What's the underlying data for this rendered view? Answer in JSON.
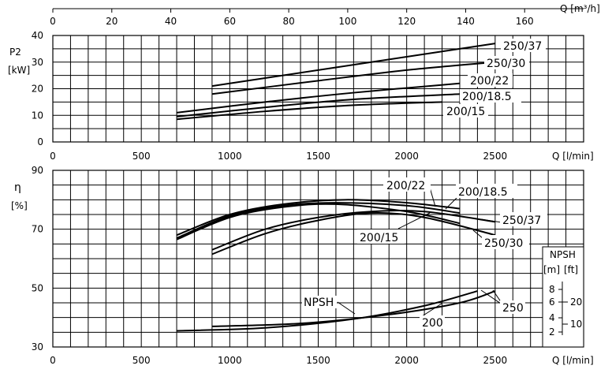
{
  "chart_data": [
    {
      "type": "line",
      "title": "",
      "ylabel": "P2",
      "yunit": "[kW]",
      "xlabel": "Q [l/min]",
      "x2label": "Q [m³/h]",
      "x2ticks": [
        0,
        20,
        40,
        60,
        80,
        100,
        120,
        140,
        160
      ],
      "xticks": [
        0,
        500,
        1000,
        1500,
        2000,
        2500
      ],
      "yticks": [
        0,
        10,
        20,
        30,
        40
      ],
      "ylim": [
        0,
        40
      ],
      "xlim": [
        0,
        3000
      ],
      "grid": true,
      "series": [
        {
          "name": "250/37",
          "x": [
            900,
            1500,
            2000,
            2500
          ],
          "y": [
            21,
            27,
            32,
            37
          ]
        },
        {
          "name": "250/30",
          "x": [
            900,
            1500,
            2000,
            2500
          ],
          "y": [
            18,
            23,
            27,
            30
          ]
        },
        {
          "name": "200/22",
          "x": [
            700,
            1200,
            1700,
            2300
          ],
          "y": [
            11,
            15,
            18.5,
            22
          ]
        },
        {
          "name": "200/18.5",
          "x": [
            700,
            1200,
            1700,
            2300
          ],
          "y": [
            9.5,
            13,
            16,
            18
          ]
        },
        {
          "name": "200/15",
          "x": [
            700,
            1200,
            1700,
            2200
          ],
          "y": [
            8.5,
            11.5,
            13.8,
            15
          ]
        }
      ]
    },
    {
      "type": "line",
      "title": "",
      "ylabel": "η",
      "yunit": "[%]",
      "xlabel": "Q [l/min]",
      "xticks": [
        0,
        500,
        1000,
        1500,
        2000,
        2500
      ],
      "yticks": [
        30,
        50,
        70,
        90
      ],
      "ylim": [
        30,
        90
      ],
      "xlim": [
        0,
        3000
      ],
      "grid": true,
      "series": [
        {
          "name": "200/22",
          "x": [
            700,
            1000,
            1300,
            1650,
            2000,
            2300
          ],
          "y": [
            68,
            75,
            78.5,
            80,
            79,
            77
          ]
        },
        {
          "name": "200/18.5",
          "x": [
            700,
            1000,
            1300,
            1600,
            2000,
            2300
          ],
          "y": [
            67,
            74.5,
            78,
            79,
            78,
            75.5
          ]
        },
        {
          "name": "200/15",
          "x": [
            700,
            1000,
            1300,
            1600,
            2000,
            2300
          ],
          "y": [
            66.5,
            74,
            77.5,
            78.5,
            76,
            72
          ]
        },
        {
          "name": "250/37",
          "x": [
            900,
            1200,
            1500,
            1800,
            2100,
            2500
          ],
          "y": [
            63,
            70,
            74,
            76,
            76,
            72.5
          ]
        },
        {
          "name": "250/30",
          "x": [
            900,
            1200,
            1500,
            1800,
            2100,
            2500
          ],
          "y": [
            61.5,
            68.5,
            73,
            75.5,
            74,
            68
          ]
        },
        {
          "name": "NPSH 200",
          "x": [
            700,
            1200,
            1700,
            2100,
            2400
          ],
          "y": [
            35.5,
            36.5,
            39.5,
            44,
            49
          ]
        },
        {
          "name": "NPSH 250",
          "x": [
            900,
            1400,
            1900,
            2300,
            2500
          ],
          "y": [
            37,
            38,
            41,
            45,
            49
          ]
        }
      ],
      "labels": [
        "200/22",
        "200/18.5",
        "250/37",
        "200/15",
        "250/30",
        "NPSH",
        "200",
        "250"
      ]
    }
  ],
  "npsh_scale": {
    "title": "NPSH",
    "units_m": "[m]",
    "units_ft": "[ft]",
    "m_ticks": [
      "8",
      "6",
      "4",
      "2"
    ],
    "ft_ticks": [
      "20",
      "10"
    ]
  }
}
